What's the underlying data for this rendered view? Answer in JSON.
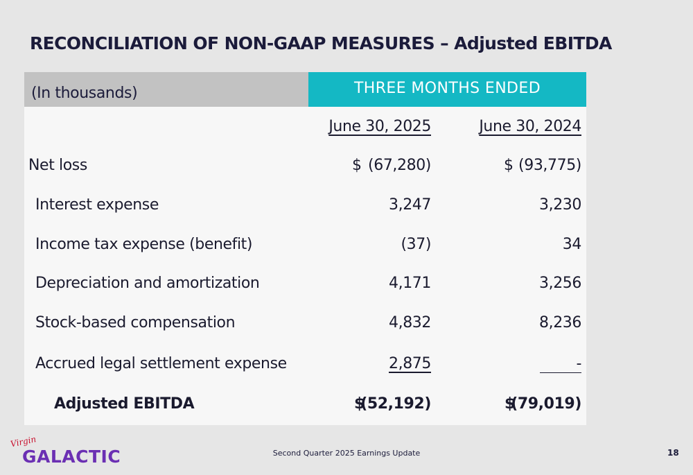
{
  "title": "RECONCILIATION OF NON-GAAP MEASURES – Adjusted EBITDA",
  "table": {
    "units_label": "(In thousands)",
    "period_header": "THREE MONTHS ENDED",
    "columns": [
      "June 30, 2025",
      "June 30, 2024"
    ],
    "currency_symbol": "$",
    "rows": [
      {
        "label": "Net loss",
        "values": [
          "(67,280)",
          "(93,775)"
        ]
      },
      {
        "label": "Interest expense",
        "values": [
          "3,247",
          "3,230"
        ]
      },
      {
        "label": "Income tax expense (benefit)",
        "values": [
          "(37)",
          "34"
        ]
      },
      {
        "label": "Depreciation and amortization",
        "values": [
          "4,171",
          "3,256"
        ]
      },
      {
        "label": "Stock-based compensation",
        "values": [
          "4,832",
          "8,236"
        ]
      },
      {
        "label": "Accrued legal settlement expense",
        "values": [
          "2,875",
          "-"
        ]
      },
      {
        "label": "Adjusted EBITDA",
        "values": [
          "(52,192)",
          "(79,019)"
        ]
      }
    ]
  },
  "footer": {
    "logo_script": "Virgin",
    "logo_word": "GALACTIC",
    "center_text": "Second Quarter 2025 Earnings Update",
    "page_number": "18"
  },
  "colors": {
    "accent_teal": "#14b8c4",
    "header_gray": "#c2c2c2",
    "brand_purple": "#6b2fb3",
    "logo_red": "#c8102e"
  }
}
